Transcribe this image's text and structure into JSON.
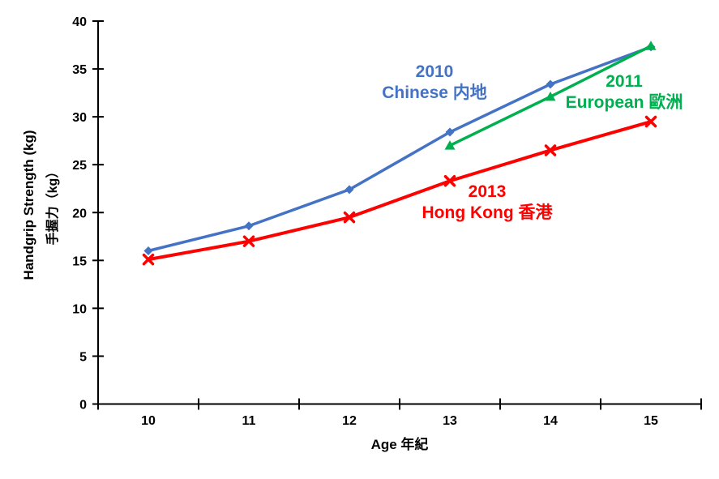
{
  "page": {
    "background": "#ffffff"
  },
  "chart_data": {
    "type": "line",
    "title": "",
    "xlabel": "Age 年紀",
    "ylabel_en": "Handgrip Strength (kg)",
    "ylabel_zh": "手握力（kg）",
    "x": [
      10,
      11,
      12,
      13,
      14,
      15
    ],
    "ylim": [
      0,
      40
    ],
    "ytick_step": 5,
    "grid": false,
    "legend_position": "inline-annotations",
    "axis_color": "#000000",
    "series": [
      {
        "name": "2010 Chinese 内地",
        "color": "#4472C4",
        "marker": "diamond",
        "line_width": 3.5,
        "values": [
          16.0,
          18.6,
          22.4,
          28.4,
          33.4,
          37.3
        ]
      },
      {
        "name": "2011 European 歐洲",
        "color": "#00B050",
        "marker": "triangle-up",
        "line_width": 3.5,
        "values": [
          null,
          null,
          null,
          27.0,
          32.1,
          37.4
        ]
      },
      {
        "name": "2013 Hong Kong 香港",
        "color": "#FF0000",
        "marker": "x",
        "line_width": 4,
        "values": [
          15.1,
          17.0,
          19.5,
          23.3,
          26.5,
          29.5
        ]
      }
    ],
    "annotations": [
      {
        "series": "2010 Chinese 内地",
        "color": "#4472C4",
        "lines": [
          "2010",
          "Chinese 内地"
        ]
      },
      {
        "series": "2011 European 歐洲",
        "color": "#00B050",
        "lines": [
          "2011",
          "European 歐洲"
        ]
      },
      {
        "series": "2013 Hong Kong 香港",
        "color": "#FF0000",
        "lines": [
          "2013",
          "Hong Kong 香港"
        ]
      }
    ]
  }
}
